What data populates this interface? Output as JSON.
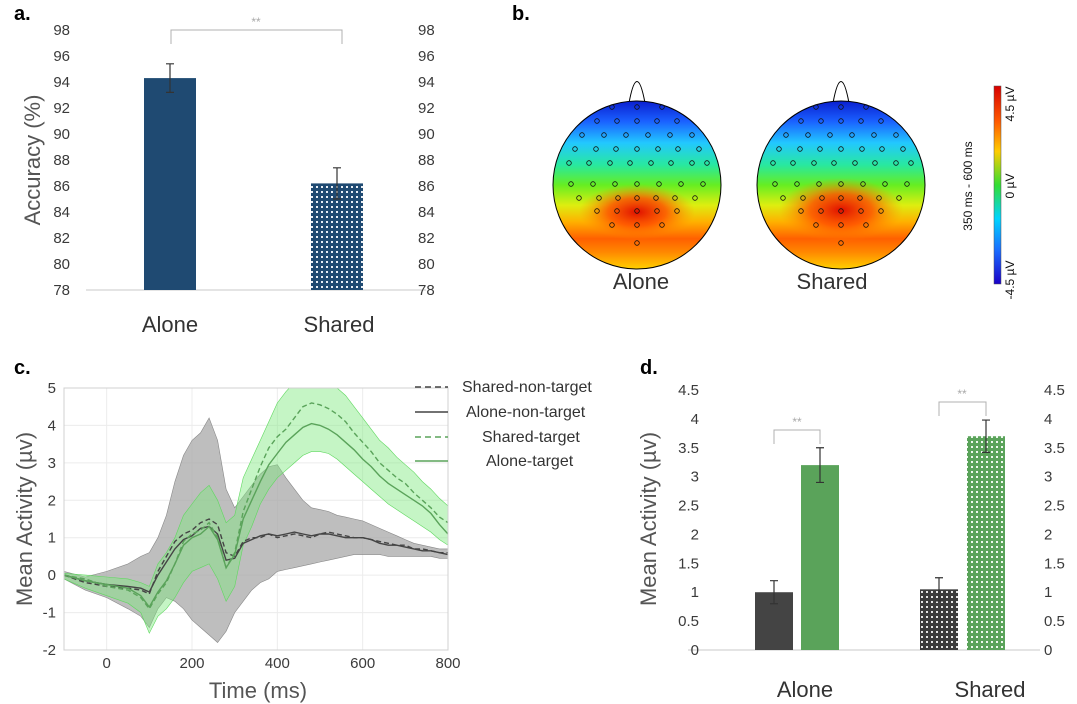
{
  "panels": {
    "a": "a.",
    "b": "b.",
    "c": "c.",
    "d": "d."
  },
  "colors": {
    "alone_dark_blue": "#1f4a72",
    "gray_nontarget": "#444444",
    "green_target": "#5aa35a",
    "light_green": "#6ee06e",
    "shade_gray": "#a6a6a6"
  },
  "chart_data": [
    {
      "id": "a",
      "type": "bar",
      "categories": [
        "Alone",
        "Shared"
      ],
      "values": [
        94.3,
        86.2
      ],
      "errors": [
        1.1,
        1.2
      ],
      "patterns": [
        "solid",
        "dots"
      ],
      "ylabel": "Accuracy (%)",
      "ylim": [
        78,
        98
      ],
      "yticks": [
        "78",
        "80",
        "82",
        "84",
        "86",
        "88",
        "90",
        "92",
        "94",
        "96",
        "98"
      ],
      "significance": "**"
    },
    {
      "id": "b",
      "type": "heatmap",
      "maps": [
        "Alone",
        "Shared"
      ],
      "colorbar_label": "350 ms - 600 ms",
      "colorbar_ticks": [
        "4.5 µV",
        "0 µV",
        "-4.5 µV"
      ],
      "colorbar_range": [
        -4.5,
        4.5
      ]
    },
    {
      "id": "c",
      "type": "line",
      "xlabel": "Time (ms)",
      "ylabel": "Mean Activity (µv)",
      "xlim": [
        -100,
        800
      ],
      "ylim": [
        -2,
        5
      ],
      "xticks": [
        "0",
        "200",
        "400",
        "600",
        "800"
      ],
      "yticks": [
        "-2",
        "-1",
        "0",
        "1",
        "2",
        "3",
        "4",
        "5"
      ],
      "x": [
        -100,
        -50,
        0,
        50,
        80,
        100,
        120,
        140,
        160,
        180,
        200,
        220,
        240,
        260,
        280,
        300,
        320,
        340,
        360,
        380,
        400,
        420,
        440,
        460,
        480,
        500,
        520,
        540,
        560,
        580,
        600,
        620,
        640,
        660,
        680,
        700,
        720,
        740,
        760,
        780,
        800
      ],
      "series": [
        {
          "name": "Shared-non-target",
          "dash": true,
          "color": "#444444",
          "values": [
            0,
            -0.2,
            -0.3,
            -0.35,
            -0.4,
            -0.5,
            0.1,
            0.5,
            0.9,
            1.1,
            1.2,
            1.4,
            1.5,
            1.35,
            0.6,
            0.5,
            0.9,
            1.0,
            1.0,
            1.1,
            1.0,
            1.05,
            1.1,
            1.05,
            1.0,
            1.1,
            1.15,
            1.1,
            1.05,
            1.0,
            1.0,
            0.95,
            0.9,
            0.85,
            0.8,
            0.8,
            0.7,
            0.7,
            0.65,
            0.6,
            0.6
          ]
        },
        {
          "name": "Alone-non-target",
          "dash": false,
          "color": "#444444",
          "values": [
            0,
            -0.15,
            -0.25,
            -0.3,
            -0.35,
            -0.45,
            0.0,
            0.35,
            0.7,
            0.95,
            1.05,
            1.25,
            1.3,
            1.1,
            0.4,
            0.45,
            0.85,
            0.95,
            1.05,
            1.1,
            1.05,
            1.1,
            1.15,
            1.1,
            1.05,
            1.1,
            1.1,
            1.05,
            1.0,
            1.0,
            1.0,
            0.95,
            0.85,
            0.8,
            0.8,
            0.75,
            0.7,
            0.65,
            0.65,
            0.6,
            0.55
          ]
        },
        {
          "name": "Shared-target",
          "dash": true,
          "color": "#5aa35a",
          "values": [
            0,
            -0.1,
            -0.3,
            -0.4,
            -0.6,
            -0.9,
            -0.5,
            -0.2,
            0.3,
            0.9,
            1.1,
            1.2,
            1.4,
            1.0,
            0.2,
            0.6,
            1.7,
            2.3,
            2.9,
            3.4,
            3.7,
            3.9,
            4.2,
            4.5,
            4.6,
            4.55,
            4.45,
            4.3,
            4.1,
            3.8,
            3.55,
            3.3,
            3.0,
            2.8,
            2.6,
            2.45,
            2.2,
            2.0,
            1.8,
            1.55,
            1.4
          ]
        },
        {
          "name": "Alone-target",
          "dash": false,
          "color": "#5aa35a",
          "values": [
            0,
            -0.15,
            -0.25,
            -0.35,
            -0.55,
            -0.85,
            -0.45,
            -0.15,
            0.3,
            0.8,
            1.0,
            1.1,
            1.3,
            0.95,
            0.2,
            0.55,
            1.5,
            2.0,
            2.5,
            2.95,
            3.25,
            3.55,
            3.75,
            3.95,
            4.05,
            4.0,
            3.9,
            3.75,
            3.55,
            3.35,
            3.1,
            2.9,
            2.65,
            2.45,
            2.3,
            2.15,
            2.0,
            1.85,
            1.65,
            1.35,
            1.1
          ]
        }
      ],
      "shade": {
        "upper": [
          0.1,
          -0.05,
          0.1,
          0.3,
          0.5,
          0.6,
          1.0,
          1.6,
          2.5,
          3.2,
          3.6,
          3.8,
          4.2,
          3.6,
          2.3,
          1.8,
          2.1,
          2.4,
          2.7,
          2.9,
          2.95,
          2.6,
          2.3,
          2.0,
          1.8,
          1.75,
          1.7,
          1.6,
          1.55,
          1.5,
          1.45,
          1.35,
          1.25,
          1.15,
          1.05,
          0.95,
          0.85,
          0.8,
          0.75,
          0.7,
          0.7
        ],
        "lower": [
          -0.1,
          -0.4,
          -0.6,
          -0.9,
          -1.1,
          -1.4,
          -0.9,
          -0.6,
          -0.7,
          -0.9,
          -1.2,
          -1.4,
          -1.6,
          -1.8,
          -1.5,
          -1.0,
          -0.7,
          -0.4,
          -0.2,
          -0.1,
          0.1,
          0.15,
          0.2,
          0.25,
          0.3,
          0.35,
          0.4,
          0.45,
          0.5,
          0.55,
          0.55,
          0.55,
          0.55,
          0.5,
          0.5,
          0.5,
          0.5,
          0.5,
          0.5,
          0.45,
          0.45
        ],
        "green_upper": [
          0.05,
          0.0,
          -0.05,
          -0.1,
          -0.2,
          -0.3,
          0.3,
          0.6,
          1.0,
          1.6,
          1.9,
          2.2,
          2.4,
          2.0,
          1.4,
          1.6,
          2.6,
          3.1,
          3.6,
          4.1,
          4.6,
          4.9,
          5.15,
          5.3,
          5.35,
          5.3,
          5.2,
          5.0,
          4.8,
          4.5,
          4.2,
          3.9,
          3.6,
          3.4,
          3.15,
          2.95,
          2.75,
          2.5,
          2.3,
          2.05,
          1.85
        ],
        "green_lower": [
          -0.1,
          -0.35,
          -0.55,
          -0.75,
          -1.0,
          -1.55,
          -1.1,
          -0.9,
          -0.6,
          -0.2,
          0.1,
          0.2,
          0.3,
          -0.1,
          -0.7,
          -0.3,
          0.8,
          1.3,
          1.9,
          2.3,
          2.6,
          2.8,
          3.0,
          3.2,
          3.3,
          3.3,
          3.25,
          3.1,
          2.9,
          2.7,
          2.5,
          2.3,
          2.1,
          1.9,
          1.75,
          1.6,
          1.45,
          1.3,
          1.15,
          0.95,
          0.8
        ]
      }
    },
    {
      "id": "d",
      "type": "bar",
      "categories": [
        "Alone",
        "Shared"
      ],
      "series": [
        {
          "name": "non-target",
          "color": "#444444",
          "values": [
            1.0,
            1.05
          ],
          "errors": [
            0.2,
            0.2
          ],
          "patterns": [
            "solid",
            "dots"
          ]
        },
        {
          "name": "target",
          "color": "#5aa35a",
          "values": [
            3.2,
            3.7
          ],
          "errors": [
            0.3,
            0.28
          ],
          "patterns": [
            "solid",
            "dots"
          ]
        }
      ],
      "ylabel": "Mean Activity (µv)",
      "ylim": [
        0,
        4.5
      ],
      "yticks": [
        "0",
        "0.5",
        "1",
        "1.5",
        "2",
        "2.5",
        "3",
        "3.5",
        "4",
        "4.5"
      ],
      "significance": [
        "**",
        "**"
      ]
    }
  ]
}
